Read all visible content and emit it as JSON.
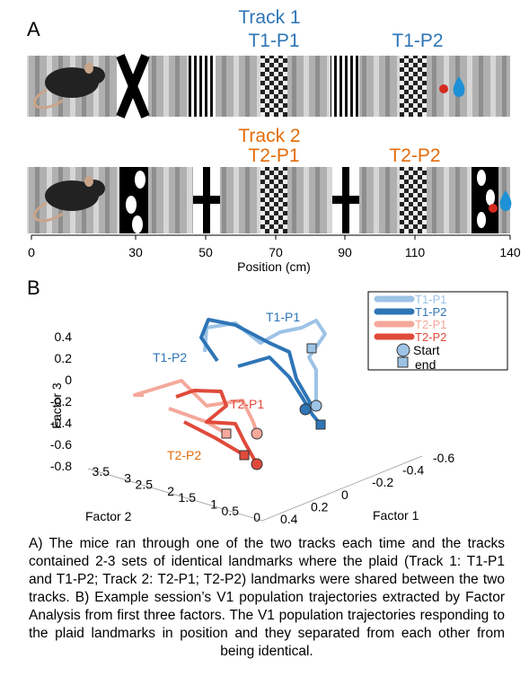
{
  "panel_a": {
    "label": "A",
    "track1": {
      "title": "Track 1",
      "landmarks": [
        "T1-P1",
        "T1-P2"
      ]
    },
    "track2": {
      "title": "Track 2",
      "landmarks": [
        "T2-P1",
        "T2-P2"
      ]
    },
    "axis": {
      "ticks": [
        "0",
        "30",
        "50",
        "70",
        "90",
        "110",
        "140"
      ],
      "label": "Position (cm)"
    }
  },
  "panel_b": {
    "label": "B",
    "legend": [
      "T1-P1",
      "T1-P2",
      "T2-P1",
      "T2-P2",
      "Start",
      "end"
    ],
    "annotations": [
      "T1-P1",
      "T1-P2",
      "T2-P1",
      "T2-P2"
    ],
    "factor3": {
      "label": "Factor 3",
      "ticks": [
        "0.4",
        "0.2",
        "0",
        "-0.2",
        "-0.4",
        "-0.6",
        "-0.8"
      ]
    },
    "factor2": {
      "label": "Factor 2",
      "ticks": [
        "3.5",
        "3",
        "2.5",
        "2",
        "1.5",
        "1",
        "0.5",
        "0"
      ]
    },
    "factor1": {
      "label": "Factor 1",
      "ticks": [
        "0.4",
        "0.2",
        "0",
        "-0.2",
        "-0.4",
        "-0.6"
      ]
    }
  },
  "caption": "A) The mice ran through one of the two tracks each time and the tracks contained 2-3 sets of identical landmarks where the plaid (Track 1: T1-P1 and T1-P2; Track 2: T2-P1; T2-P2) landmarks were shared between the two tracks. B) Example session’s V1 population trajectories extracted by Factor Analysis from first three factors. The V1 population trajectories responding to the plaid landmarks in position and they separated from each other from being identical."
}
